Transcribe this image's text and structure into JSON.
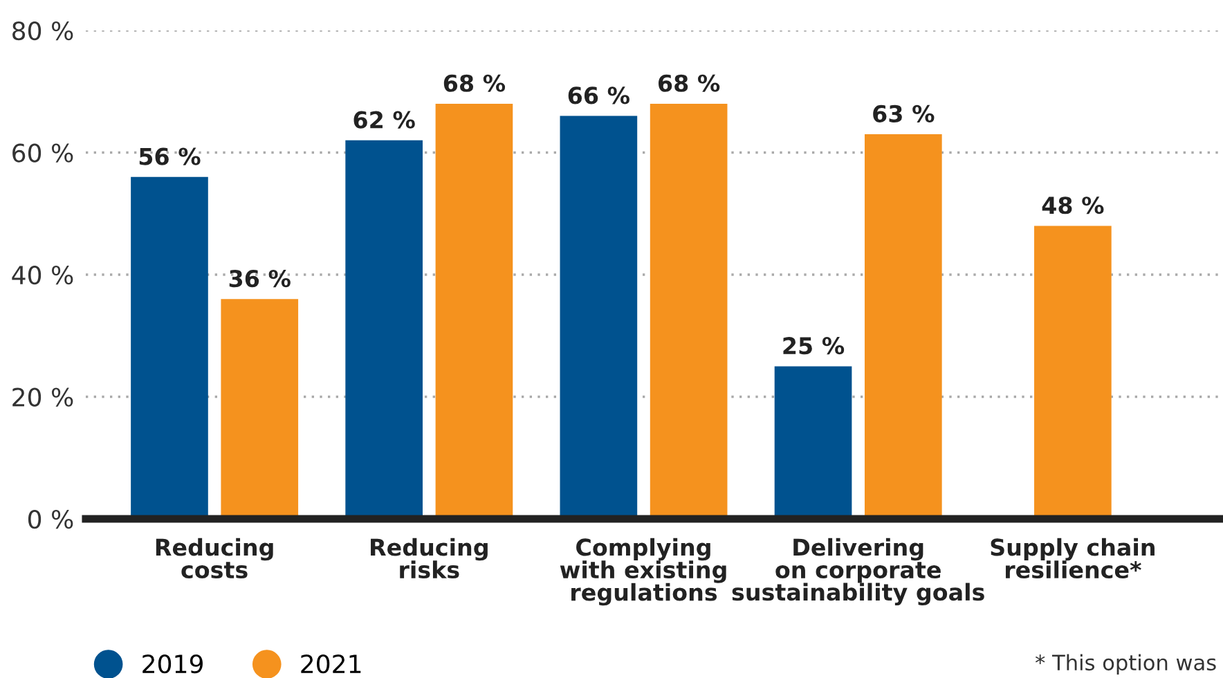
{
  "chart_data": {
    "type": "bar",
    "categories": [
      "Reducing\ncosts",
      "Reducing\nrisks",
      "Complying\nwith existing\nregulations",
      "Delivering\non corporate\nsustainability goals",
      "Supply chain\nresilience*"
    ],
    "series": [
      {
        "name": "2019",
        "color": "#00528f",
        "values": [
          56,
          62,
          66,
          25,
          null
        ],
        "value_labels": [
          "56 %",
          "62 %",
          "66 %",
          "25 %",
          null
        ]
      },
      {
        "name": "2021",
        "color": "#f5921e",
        "values": [
          36,
          68,
          68,
          63,
          48
        ],
        "value_labels": [
          "36 %",
          "68 %",
          "68 %",
          "63 %",
          "48 %"
        ]
      }
    ],
    "ylim": [
      0,
      80
    ],
    "yticks": [
      {
        "value": 0,
        "label": "0 %"
      },
      {
        "value": 20,
        "label": "20 %"
      },
      {
        "value": 40,
        "label": "40 %"
      },
      {
        "value": 60,
        "label": "60 %"
      },
      {
        "value": 80,
        "label": "80 %"
      }
    ],
    "grid": "y",
    "legend": "bottom left",
    "annotations": [
      "* This option was"
    ]
  }
}
